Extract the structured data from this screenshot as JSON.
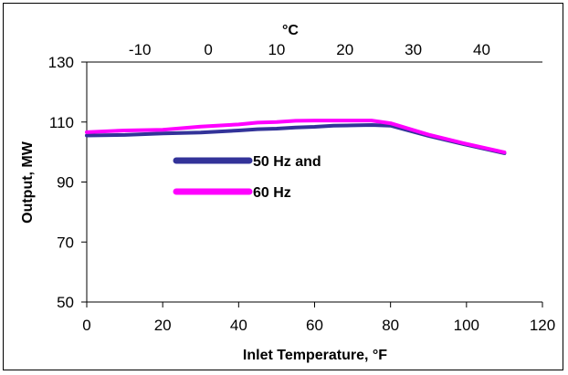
{
  "chart_data": {
    "type": "line",
    "x": [
      0,
      10,
      20,
      30,
      40,
      45,
      50,
      55,
      60,
      65,
      70,
      75,
      80,
      90,
      100,
      110
    ],
    "series": [
      {
        "name": "50 Hz and",
        "color": "#333399",
        "values": [
          105.5,
          105.7,
          106.2,
          106.5,
          107.2,
          107.6,
          107.8,
          108.2,
          108.4,
          108.8,
          108.9,
          109.0,
          108.8,
          105.4,
          102.4,
          99.6
        ]
      },
      {
        "name": "60 Hz",
        "color": "#FF00FF",
        "values": [
          106.6,
          107.2,
          107.4,
          108.5,
          109.2,
          109.8,
          110.0,
          110.4,
          110.5,
          110.5,
          110.5,
          110.5,
          109.6,
          105.8,
          102.7,
          99.9
        ]
      }
    ],
    "xlabel": "Inlet Temperature, °F",
    "ylabel": "Output, MW",
    "secondary_xlabel": "°C",
    "xlim": [
      0,
      120
    ],
    "ylim": [
      50,
      130
    ],
    "x_ticks": [
      "0",
      "20",
      "40",
      "60",
      "80",
      "100",
      "120"
    ],
    "y_ticks": [
      "50",
      "70",
      "90",
      "110",
      "130"
    ],
    "secondary_x_ticks": [
      {
        "label": "-10",
        "value_c": -10
      },
      {
        "label": "0",
        "value_c": 0
      },
      {
        "label": "10",
        "value_c": 10
      },
      {
        "label": "20",
        "value_c": 20
      },
      {
        "label": "30",
        "value_c": 30
      },
      {
        "label": "40",
        "value_c": 40
      }
    ],
    "grid": false,
    "legend_position": "inside-left"
  }
}
